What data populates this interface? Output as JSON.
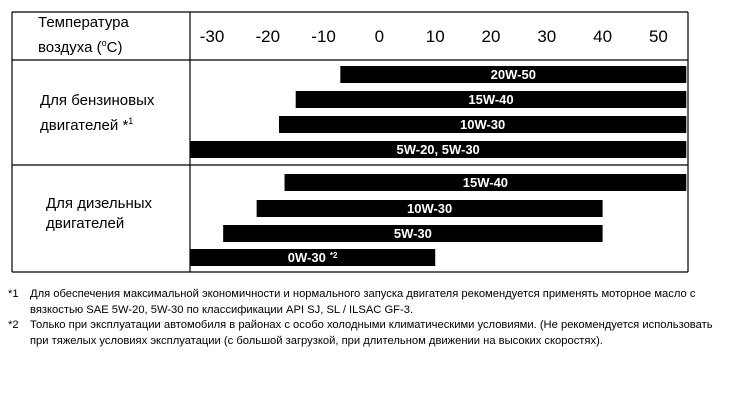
{
  "header": {
    "label_line1": "Температура",
    "label_line2_prefix": "воздуха (",
    "label_line2_unit_sup": "o",
    "label_line2_suffix": "C)"
  },
  "groups": [
    {
      "label_line1": "Для бензиновых",
      "label_line2": "двигателей *",
      "footnote_ref": "1"
    },
    {
      "label_line1": "Для дизельных",
      "label_line2": "двигателей",
      "footnote_ref": ""
    }
  ],
  "chart_data": {
    "type": "bar",
    "orientation": "horizontal-range",
    "xlabel": "Температура воздуха (oC)",
    "x_ticks": [
      -30,
      -20,
      -10,
      0,
      10,
      20,
      30,
      40,
      50
    ],
    "xlim": [
      -35,
      55
    ],
    "series": [
      {
        "group": 0,
        "label": "20W-50",
        "note": "",
        "from": -7,
        "to": 55
      },
      {
        "group": 0,
        "label": "15W-40",
        "note": "",
        "from": -15,
        "to": 55
      },
      {
        "group": 0,
        "label": "10W-30",
        "note": "",
        "from": -18,
        "to": 55
      },
      {
        "group": 0,
        "label": "5W-20, 5W-30",
        "note": "",
        "from": -35,
        "to": 55
      },
      {
        "group": 1,
        "label": "15W-40",
        "note": "",
        "from": -17,
        "to": 55
      },
      {
        "group": 1,
        "label": "10W-30",
        "note": "",
        "from": -22,
        "to": 40
      },
      {
        "group": 1,
        "label": "5W-30",
        "note": "",
        "from": -28,
        "to": 40
      },
      {
        "group": 1,
        "label": "0W-30",
        "note": "*2",
        "from": -35,
        "to": 10
      }
    ]
  },
  "notes": [
    {
      "mark": "*1",
      "text": "Для обеспечения максимальной экономичности и нормального запуска двигателя рекомендуется применять моторное масло с вязкостью SAE 5W-20, 5W-30 по классификации API SJ, SL / ILSAC GF-3."
    },
    {
      "mark": "*2",
      "text": "Только при эксплуатации автомобиля в районах с особо холодными климатическими условиями. (Не рекомендуется использовать при тяжелых условиях эксплуатации (с большой загрузкой, при длительном движении на высоких скоростях)."
    }
  ],
  "colors": {
    "bar": "#000000",
    "bar_text": "#ffffff",
    "grid": "#000000"
  }
}
